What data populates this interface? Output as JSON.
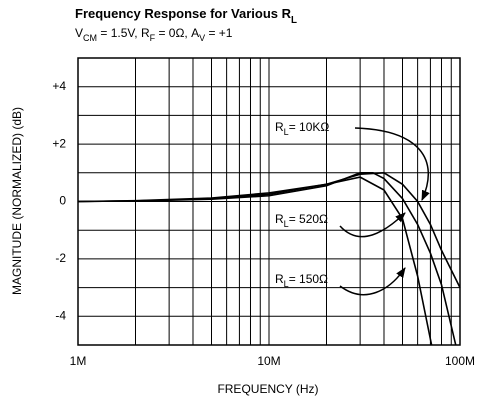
{
  "chart_data": {
    "type": "line",
    "title": [
      {
        "text": "Frequency Response for Various R"
      },
      {
        "text": "L",
        "sub": true
      }
    ],
    "subtitle": [
      {
        "text": "V"
      },
      {
        "text": "CM",
        "sub": true
      },
      {
        "text": " = 1.5V, R"
      },
      {
        "text": "F",
        "sub": true
      },
      {
        "text": " = 0Ω, A"
      },
      {
        "text": "V",
        "sub": true
      },
      {
        "text": " = +1"
      }
    ],
    "x_label": "FREQUENCY (Hz)",
    "y_label": "MAGNITUDE (NORMALIZED) (dB)",
    "x_log": true,
    "xlim": [
      1000000,
      100000000
    ],
    "xticks": [
      {
        "value": 1000000,
        "label": "1M"
      },
      {
        "value": 10000000,
        "label": "10M"
      },
      {
        "value": 100000000,
        "label": "100M"
      }
    ],
    "x_minor_ticks": [
      2000000,
      3000000,
      4000000,
      5000000,
      6000000,
      7000000,
      8000000,
      9000000,
      20000000,
      30000000,
      40000000,
      50000000,
      60000000,
      70000000,
      80000000,
      90000000
    ],
    "ylim": [
      -5,
      5
    ],
    "yticks": [
      {
        "value": 4,
        "label": "+4"
      },
      {
        "value": 2,
        "label": "+2"
      },
      0,
      -2,
      -4
    ],
    "y_minor_ticks": [
      -3,
      -1,
      1,
      3
    ],
    "grid": true,
    "series": [
      {
        "name": [
          {
            "text": "R"
          },
          {
            "text": "L",
            "sub": true
          },
          {
            "text": "= 10KΩ"
          }
        ],
        "color": "#000000",
        "x": [
          1000000,
          2000000,
          5000000,
          10000000,
          20000000,
          30000000,
          40000000,
          50000000,
          60000000,
          70000000,
          80000000,
          100000000
        ],
        "values": [
          0,
          0.02,
          0.1,
          0.25,
          0.6,
          0.95,
          1.0,
          0.6,
          0,
          -0.8,
          -1.7,
          -3
        ]
      },
      {
        "name": [
          {
            "text": "R"
          },
          {
            "text": "L",
            "sub": true
          },
          {
            "text": "= 520Ω"
          }
        ],
        "color": "#000000",
        "x": [
          1000000,
          2000000,
          5000000,
          10000000,
          20000000,
          30000000,
          35000000,
          40000000,
          50000000,
          60000000,
          70000000,
          80000000,
          95000000
        ],
        "values": [
          0,
          0.02,
          0.08,
          0.2,
          0.55,
          1.0,
          1.0,
          0.8,
          0.1,
          -0.8,
          -1.8,
          -2.9,
          -5
        ]
      },
      {
        "name": [
          {
            "text": "R"
          },
          {
            "text": "L",
            "sub": true
          },
          {
            "text": "= 150Ω"
          }
        ],
        "color": "#000000",
        "x": [
          1000000,
          2000000,
          5000000,
          10000000,
          20000000,
          30000000,
          40000000,
          50000000,
          60000000,
          71000000
        ],
        "values": [
          0,
          0.03,
          0.12,
          0.3,
          0.6,
          0.85,
          0.4,
          -0.6,
          -2.6,
          -5
        ]
      }
    ]
  }
}
